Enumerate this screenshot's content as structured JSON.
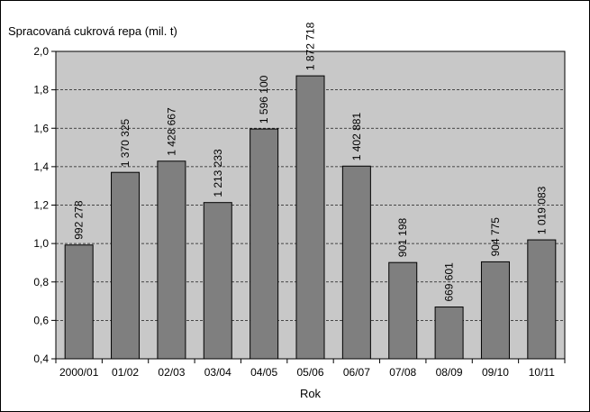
{
  "chart_data": {
    "type": "bar",
    "ylabel": "Spracovaná cukrová repa (mil. t)",
    "xlabel": "Rok",
    "categories": [
      "2000/01",
      "01/02",
      "02/03",
      "03/04",
      "04/05",
      "05/06",
      "06/07",
      "07/08",
      "08/09",
      "09/10",
      "10/11"
    ],
    "values": [
      0.992278,
      1.370325,
      1.428667,
      1.213233,
      1.5961,
      1.872718,
      1.402881,
      0.901198,
      0.669601,
      0.904775,
      1.019083
    ],
    "data_labels": [
      "992 278",
      "1 370 325",
      "1 428 667",
      "1 213 233",
      "1 596 100",
      "1 872 718",
      "1 402 881",
      "901 198",
      "669 601",
      "904 775",
      "1 019 083"
    ],
    "ylim": [
      0.4,
      2.0
    ],
    "yticks": [
      0.4,
      0.6,
      0.8,
      1.0,
      1.2,
      1.4,
      1.6,
      1.8,
      2.0
    ],
    "ytick_labels": [
      "0,4",
      "0,6",
      "0,8",
      "1,0",
      "1,2",
      "1,4",
      "1,6",
      "1,8",
      "2,0"
    ],
    "grid": true,
    "legend": "none",
    "colors": {
      "bar": "#7f7f7f",
      "plot_background": "#c8c8c8"
    }
  }
}
